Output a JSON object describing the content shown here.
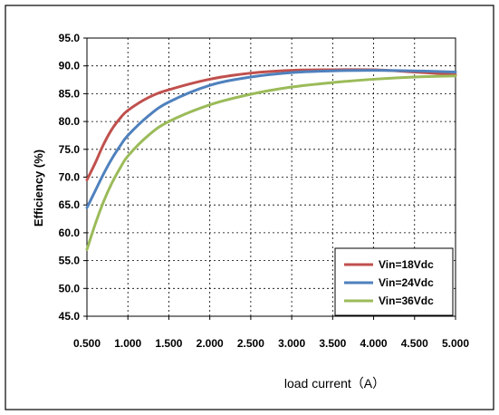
{
  "chart_data": {
    "type": "line",
    "title": "",
    "xlabel": "load current（A）",
    "ylabel": "Efficiency (%)",
    "xlim": [
      0.5,
      5.0
    ],
    "ylim": [
      45.0,
      95.0
    ],
    "x_ticks": [
      "0.500",
      "1.000",
      "1.500",
      "2.000",
      "2.500",
      "3.000",
      "3.500",
      "4.000",
      "4.500",
      "5.000"
    ],
    "y_ticks": [
      "45.0",
      "50.0",
      "55.0",
      "60.0",
      "65.0",
      "70.0",
      "75.0",
      "80.0",
      "85.0",
      "90.0",
      "95.0"
    ],
    "grid": true,
    "legend_position": "bottom-right",
    "series": [
      {
        "name": "Vin=18Vdc",
        "color": "#c0504d",
        "x": [
          0.5,
          0.6,
          0.7,
          0.8,
          0.9,
          1.0,
          1.25,
          1.5,
          2.0,
          2.5,
          3.0,
          3.5,
          4.0,
          4.5,
          5.0
        ],
        "y": [
          69.5,
          72.5,
          75.8,
          78.5,
          80.5,
          82.0,
          84.3,
          85.7,
          87.6,
          88.7,
          89.2,
          89.3,
          89.3,
          88.9,
          88.4
        ]
      },
      {
        "name": "Vin=24Vdc",
        "color": "#4f81bd",
        "x": [
          0.5,
          0.6,
          0.7,
          0.8,
          0.9,
          1.0,
          1.25,
          1.5,
          2.0,
          2.5,
          3.0,
          3.5,
          4.0,
          4.5,
          5.0
        ],
        "y": [
          64.5,
          67.5,
          70.5,
          73.2,
          75.5,
          77.5,
          81.0,
          83.5,
          86.5,
          88.0,
          88.8,
          89.1,
          89.2,
          89.1,
          88.9
        ]
      },
      {
        "name": "Vin=36Vdc",
        "color": "#9bbb59",
        "x": [
          0.5,
          0.6,
          0.7,
          0.8,
          0.9,
          1.0,
          1.25,
          1.5,
          2.0,
          2.5,
          3.0,
          3.5,
          4.0,
          4.5,
          5.0
        ],
        "y": [
          57.0,
          61.5,
          65.5,
          68.8,
          71.5,
          73.8,
          77.5,
          80.0,
          83.0,
          84.9,
          86.2,
          87.0,
          87.6,
          88.0,
          88.2
        ]
      }
    ]
  }
}
